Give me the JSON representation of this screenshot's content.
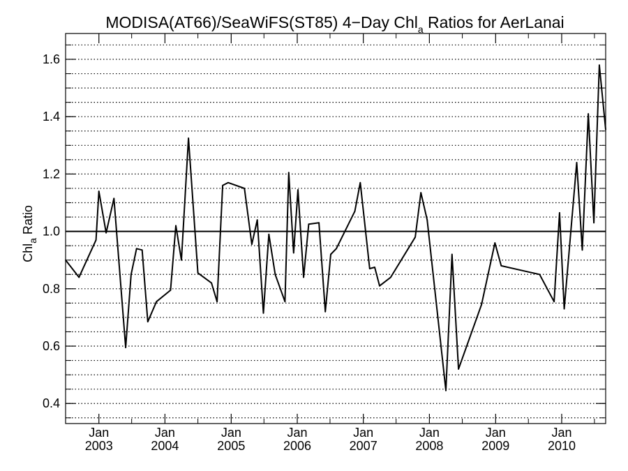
{
  "chart_data": {
    "type": "line",
    "title_main": "MODISA(AT66)/SeaWiFS(ST85) 4−Day Chl",
    "title_sub": "a",
    "title_tail": " Ratios for AerLanai",
    "ylabel_main": "Chl",
    "ylabel_sub": "a",
    "ylabel_tail": " Ratio",
    "xlim": [
      "2002-07-01",
      "2010-09-01"
    ],
    "ylim": [
      0.33,
      1.69
    ],
    "y_ticks": [
      {
        "value": 0.4,
        "label": "0.4"
      },
      {
        "value": 0.6,
        "label": "0.6"
      },
      {
        "value": 0.8,
        "label": "0.8"
      },
      {
        "value": 1.0,
        "label": "1.0"
      },
      {
        "value": 1.2,
        "label": "1.2"
      },
      {
        "value": 1.4,
        "label": "1.4"
      },
      {
        "value": 1.6,
        "label": "1.6"
      }
    ],
    "y_gridlines": [
      0.35,
      0.4,
      0.45,
      0.5,
      0.55,
      0.6,
      0.65,
      0.7,
      0.75,
      0.8,
      0.85,
      0.9,
      0.95,
      1.05,
      1.1,
      1.15,
      1.2,
      1.25,
      1.3,
      1.35,
      1.4,
      1.45,
      1.5,
      1.55,
      1.6,
      1.65
    ],
    "grid": "dotted horizontal",
    "reference_line": 1.0,
    "x_ticks": [
      {
        "date": "2003-01-01",
        "month": "Jan",
        "year": "2003"
      },
      {
        "date": "2004-01-01",
        "month": "Jan",
        "year": "2004"
      },
      {
        "date": "2005-01-01",
        "month": "Jan",
        "year": "2005"
      },
      {
        "date": "2006-01-01",
        "month": "Jan",
        "year": "2006"
      },
      {
        "date": "2007-01-01",
        "month": "Jan",
        "year": "2007"
      },
      {
        "date": "2008-01-01",
        "month": "Jan",
        "year": "2008"
      },
      {
        "date": "2009-01-01",
        "month": "Jan",
        "year": "2009"
      },
      {
        "date": "2010-01-01",
        "month": "Jan",
        "year": "2010"
      }
    ],
    "x_minor_ticks": [
      "2003-07-01",
      "2004-07-01",
      "2005-07-01",
      "2006-07-01",
      "2007-07-01",
      "2008-07-01",
      "2009-07-01",
      "2010-07-01"
    ],
    "series": [
      {
        "points": [
          [
            "2002-07-01",
            0.9
          ],
          [
            "2002-09-13",
            0.84
          ],
          [
            "2002-12-16",
            0.97
          ],
          [
            "2003-01-01",
            1.14
          ],
          [
            "2003-02-10",
            0.995
          ],
          [
            "2003-03-25",
            1.115
          ],
          [
            "2003-05-29",
            0.595
          ],
          [
            "2003-06-28",
            0.85
          ],
          [
            "2003-07-28",
            0.94
          ],
          [
            "2003-08-28",
            0.935
          ],
          [
            "2003-09-28",
            0.685
          ],
          [
            "2003-11-15",
            0.755
          ],
          [
            "2004-02-01",
            0.795
          ],
          [
            "2004-03-01",
            1.02
          ],
          [
            "2004-04-01",
            0.9
          ],
          [
            "2004-05-10",
            1.325
          ],
          [
            "2004-07-01",
            0.855
          ],
          [
            "2004-09-14",
            0.82
          ],
          [
            "2004-10-15",
            0.755
          ],
          [
            "2004-11-15",
            1.16
          ],
          [
            "2004-12-15",
            1.17
          ],
          [
            "2005-03-15",
            1.15
          ],
          [
            "2005-04-25",
            0.955
          ],
          [
            "2005-05-25",
            1.04
          ],
          [
            "2005-06-28",
            0.715
          ],
          [
            "2005-07-28",
            0.99
          ],
          [
            "2005-09-01",
            0.85
          ],
          [
            "2005-10-25",
            0.755
          ],
          [
            "2005-11-15",
            1.205
          ],
          [
            "2005-12-12",
            0.925
          ],
          [
            "2006-01-05",
            1.145
          ],
          [
            "2006-02-05",
            0.84
          ],
          [
            "2006-03-05",
            1.025
          ],
          [
            "2006-05-01",
            1.03
          ],
          [
            "2006-06-05",
            0.72
          ],
          [
            "2006-07-05",
            0.92
          ],
          [
            "2006-08-05",
            0.94
          ],
          [
            "2006-11-15",
            1.07
          ],
          [
            "2006-12-15",
            1.17
          ],
          [
            "2007-02-05",
            0.87
          ],
          [
            "2007-03-05",
            0.875
          ],
          [
            "2007-04-01",
            0.81
          ],
          [
            "2007-06-01",
            0.84
          ],
          [
            "2007-10-15",
            0.98
          ],
          [
            "2007-11-15",
            1.135
          ],
          [
            "2007-12-20",
            1.04
          ],
          [
            "2008-04-01",
            0.445
          ],
          [
            "2008-05-05",
            0.92
          ],
          [
            "2008-06-10",
            0.52
          ],
          [
            "2008-10-15",
            0.745
          ],
          [
            "2008-12-28",
            0.96
          ],
          [
            "2009-02-01",
            0.88
          ],
          [
            "2009-09-01",
            0.85
          ],
          [
            "2009-11-20",
            0.755
          ],
          [
            "2009-12-20",
            1.065
          ],
          [
            "2010-01-15",
            0.73
          ],
          [
            "2010-03-25",
            1.24
          ],
          [
            "2010-04-25",
            0.935
          ],
          [
            "2010-05-28",
            1.41
          ],
          [
            "2010-06-28",
            1.03
          ],
          [
            "2010-07-28",
            1.58
          ],
          [
            "2010-09-01",
            1.355
          ]
        ]
      }
    ]
  }
}
